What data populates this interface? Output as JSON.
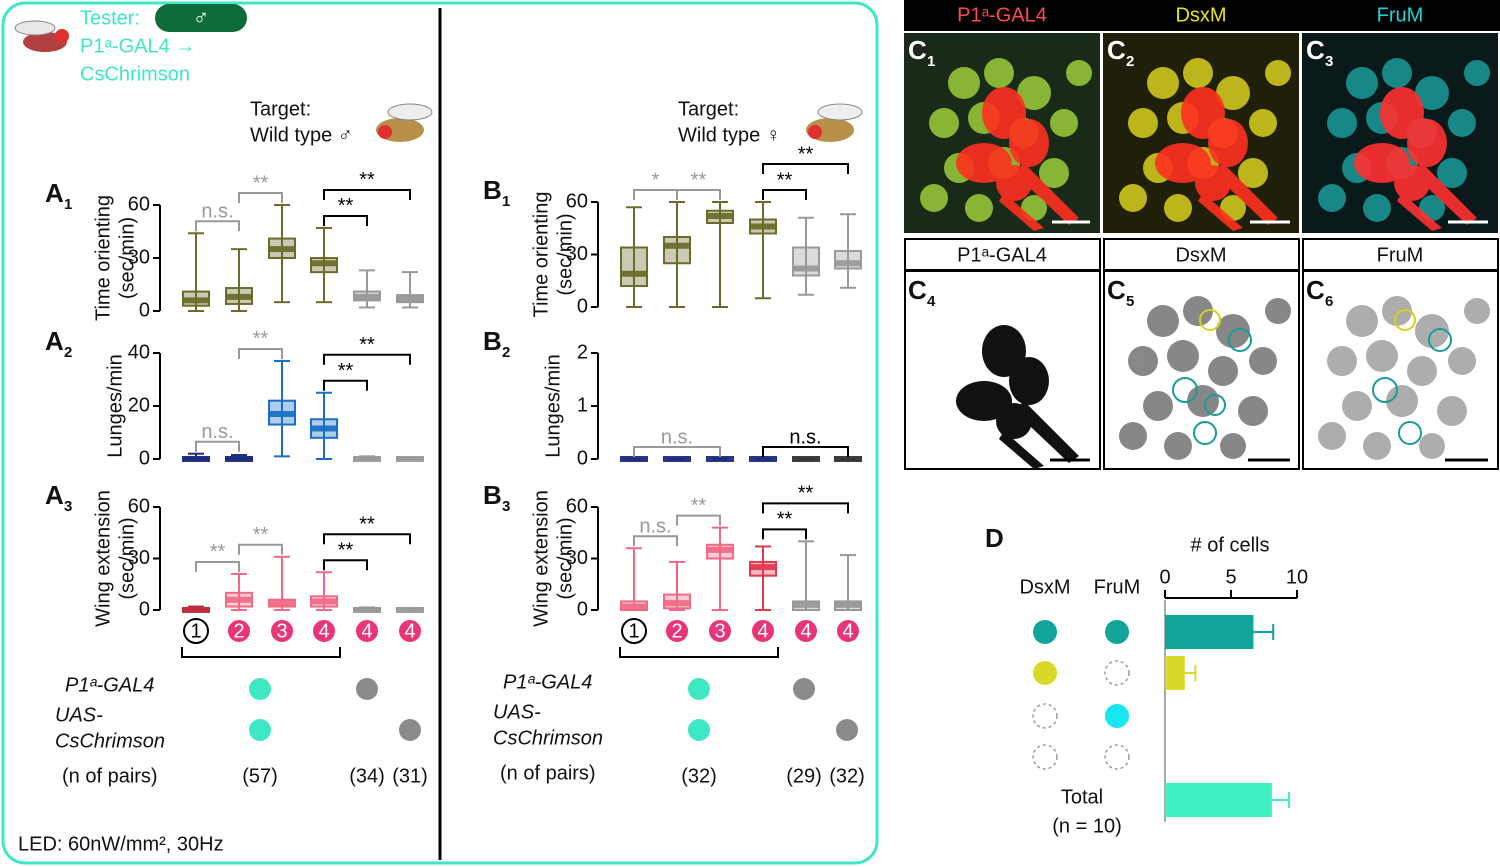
{
  "tester": {
    "label": "Tester:",
    "sex": "♂",
    "line1": "P1ᵃ-GAL4 →",
    "line2": "CsChrimson"
  },
  "targets": [
    {
      "label": "Target:",
      "genotype": "Wild type ♂"
    },
    {
      "label": "Target:",
      "genotype": "Wild type ♀"
    }
  ],
  "box_panels": [
    {
      "type": "box",
      "letter": "A",
      "sub": "1",
      "ylabel": [
        "Time orienting",
        "(sec/min)"
      ],
      "ylim": [
        0,
        60
      ],
      "yticks": [
        0,
        30,
        60
      ],
      "colors": [
        "#6b6b2a",
        "#6b6b2a",
        "#6b6b2a",
        "#6b6b2a",
        "#999999",
        "#999999"
      ],
      "boxes": [
        {
          "min": 0,
          "q1": 3,
          "median": 6,
          "q3": 11,
          "max": 44
        },
        {
          "min": 0,
          "q1": 4,
          "median": 8,
          "q3": 13,
          "max": 35
        },
        {
          "min": 5,
          "q1": 30,
          "median": 35,
          "q3": 41,
          "max": 60
        },
        {
          "min": 5,
          "q1": 22,
          "median": 27,
          "q3": 30,
          "max": 47
        },
        {
          "min": 2,
          "q1": 6,
          "median": 8,
          "q3": 11,
          "max": 23
        },
        {
          "min": 2,
          "q1": 5,
          "median": 7,
          "q3": 9,
          "max": 22
        }
      ],
      "comparisons": [
        {
          "from": 0,
          "to": 1,
          "label": "n.s.",
          "color": "#999999"
        },
        {
          "from": 1,
          "to": 2,
          "label": "**",
          "color": "#999999"
        },
        {
          "from": 3,
          "to": 4,
          "label": "**",
          "color": "#000000"
        },
        {
          "from": 3,
          "to": 5,
          "label": "**",
          "color": "#000000"
        }
      ]
    },
    {
      "type": "box",
      "letter": "A",
      "sub": "2",
      "ylabel": [
        "Lunges/min"
      ],
      "ylim": [
        0,
        40
      ],
      "yticks": [
        0,
        20,
        40
      ],
      "colors": [
        "#1f2a7a",
        "#1f2a7a",
        "#1a6fc4",
        "#1a6fc4",
        "#999999",
        "#999999"
      ],
      "boxes": [
        {
          "min": 0,
          "q1": 0,
          "median": 0,
          "q3": 0.5,
          "max": 2
        },
        {
          "min": 0,
          "q1": 0,
          "median": 0,
          "q3": 0.5,
          "max": 1.5
        },
        {
          "min": 1,
          "q1": 13,
          "median": 17,
          "q3": 22,
          "max": 37
        },
        {
          "min": 0,
          "q1": 8,
          "median": 11.5,
          "q3": 15,
          "max": 25
        },
        {
          "min": 0,
          "q1": 0,
          "median": 0,
          "q3": 0.5,
          "max": 1
        },
        {
          "min": 0,
          "q1": 0,
          "median": 0,
          "q3": 0.2,
          "max": 0.5
        }
      ],
      "comparisons": [
        {
          "from": 0,
          "to": 1,
          "label": "n.s.",
          "color": "#999999"
        },
        {
          "from": 1,
          "to": 2,
          "label": "**",
          "color": "#999999"
        },
        {
          "from": 3,
          "to": 4,
          "label": "**",
          "color": "#000000"
        },
        {
          "from": 3,
          "to": 5,
          "label": "**",
          "color": "#000000"
        }
      ]
    },
    {
      "type": "box",
      "letter": "A",
      "sub": "3",
      "ylabel": [
        "Wing extension",
        "(sec/min)"
      ],
      "ylim": [
        0,
        60
      ],
      "yticks": [
        0,
        30,
        60
      ],
      "colors": [
        "#c0283c",
        "#f06a86",
        "#f06a86",
        "#f06a86",
        "#999999",
        "#999999"
      ],
      "boxes": [
        {
          "min": 0,
          "q1": 0,
          "median": 0,
          "q3": 0.5,
          "max": 2
        },
        {
          "min": 0,
          "q1": 2,
          "median": 6,
          "q3": 10,
          "max": 21
        },
        {
          "min": 0,
          "q1": 2,
          "median": 4,
          "q3": 6,
          "max": 31
        },
        {
          "min": 0,
          "q1": 2,
          "median": 5,
          "q3": 8,
          "max": 22
        },
        {
          "min": 0,
          "q1": 0,
          "median": 0,
          "q3": 1,
          "max": 1.5
        },
        {
          "min": 0,
          "q1": 0,
          "median": 0,
          "q3": 0,
          "max": 1
        }
      ],
      "comparisons": [
        {
          "from": 0,
          "to": 1,
          "label": "**",
          "color": "#999999"
        },
        {
          "from": 1,
          "to": 2,
          "label": "**",
          "color": "#999999"
        },
        {
          "from": 3,
          "to": 4,
          "label": "**",
          "color": "#000000"
        },
        {
          "from": 3,
          "to": 5,
          "label": "**",
          "color": "#000000"
        }
      ]
    },
    {
      "type": "box",
      "letter": "B",
      "sub": "1",
      "ylabel": [
        "Time orienting",
        "(sec/min)"
      ],
      "ylim": [
        0,
        60
      ],
      "yticks": [
        0,
        30,
        60
      ],
      "colors": [
        "#6b6b2a",
        "#6b6b2a",
        "#6b6b2a",
        "#6b6b2a",
        "#999999",
        "#999999"
      ],
      "boxes": [
        {
          "min": 0,
          "q1": 12,
          "median": 19,
          "q3": 34,
          "max": 57
        },
        {
          "min": 0,
          "q1": 25,
          "median": 35,
          "q3": 40,
          "max": 60
        },
        {
          "min": 0,
          "q1": 48,
          "median": 52,
          "q3": 55,
          "max": 60
        },
        {
          "min": 5,
          "q1": 42,
          "median": 46,
          "q3": 50,
          "max": 60
        },
        {
          "min": 7,
          "q1": 18,
          "median": 22,
          "q3": 34,
          "max": 51
        },
        {
          "min": 11,
          "q1": 22,
          "median": 25,
          "q3": 32,
          "max": 53
        }
      ],
      "comparisons": [
        {
          "from": 0,
          "to": 1,
          "label": "*",
          "color": "#999999"
        },
        {
          "from": 1,
          "to": 2,
          "label": "**",
          "color": "#999999"
        },
        {
          "from": 3,
          "to": 4,
          "label": "**",
          "color": "#000000"
        },
        {
          "from": 3,
          "to": 5,
          "label": "**",
          "color": "#000000"
        }
      ]
    },
    {
      "type": "box",
      "letter": "B",
      "sub": "2",
      "ylabel": [
        "Lunges/min"
      ],
      "ylim": [
        0,
        2
      ],
      "yticks": [
        0,
        1,
        2
      ],
      "colors": [
        "#1f2a7a",
        "#1f2a7a",
        "#1f2a7a",
        "#1f2a7a",
        "#333333",
        "#333333"
      ],
      "boxes": [
        {
          "min": 0,
          "q1": 0,
          "median": 0,
          "q3": 0,
          "max": 0
        },
        {
          "min": 0,
          "q1": 0,
          "median": 0,
          "q3": 0,
          "max": 0
        },
        {
          "min": 0,
          "q1": 0,
          "median": 0,
          "q3": 0,
          "max": 0
        },
        {
          "min": 0,
          "q1": 0,
          "median": 0,
          "q3": 0,
          "max": 0
        },
        {
          "min": 0,
          "q1": 0,
          "median": 0,
          "q3": 0,
          "max": 0
        },
        {
          "min": 0,
          "q1": 0,
          "median": 0,
          "q3": 0,
          "max": 0
        }
      ],
      "comparisons": [
        {
          "from": 0,
          "to": 2,
          "label": "n.s.",
          "color": "#999999"
        },
        {
          "from": 3,
          "to": 5,
          "label": "n.s.",
          "color": "#000000"
        }
      ]
    },
    {
      "type": "box",
      "letter": "B",
      "sub": "3",
      "ylabel": [
        "Wing extension",
        "(sec/min)"
      ],
      "ylim": [
        0,
        60
      ],
      "yticks": [
        0,
        30,
        60
      ],
      "colors": [
        "#f06a86",
        "#f06a86",
        "#f06a86",
        "#e0384c",
        "#999999",
        "#999999"
      ],
      "boxes": [
        {
          "min": 0,
          "q1": 0,
          "median": 2,
          "q3": 5,
          "max": 36
        },
        {
          "min": 0,
          "q1": 1,
          "median": 4,
          "q3": 9,
          "max": 28
        },
        {
          "min": 0,
          "q1": 30,
          "median": 35,
          "q3": 38,
          "max": 48
        },
        {
          "min": 0,
          "q1": 20,
          "median": 25,
          "q3": 28,
          "max": 37
        },
        {
          "min": 0,
          "q1": 0,
          "median": 3,
          "q3": 5,
          "max": 40
        },
        {
          "min": 0,
          "q1": 0,
          "median": 3,
          "q3": 5,
          "max": 32
        }
      ],
      "comparisons": [
        {
          "from": 0,
          "to": 1,
          "label": "n.s.",
          "color": "#999999"
        },
        {
          "from": 1,
          "to": 2,
          "label": "**",
          "color": "#999999"
        },
        {
          "from": 3,
          "to": 4,
          "label": "**",
          "color": "#000000"
        },
        {
          "from": 3,
          "to": 5,
          "label": "**",
          "color": "#000000"
        }
      ]
    }
  ],
  "conditions": [
    "1",
    "2",
    "3",
    "4",
    "4",
    "4"
  ],
  "genotype_tables": [
    {
      "p1": "P1ᵃ-GAL4",
      "uas": [
        "UAS-",
        "CsChrimson"
      ],
      "n_label": "(n of pairs)",
      "n": [
        "(57)",
        "(34)",
        "(31)"
      ]
    },
    {
      "p1": "P1ᵃ-GAL4",
      "uas": [
        "UAS-",
        "CsChrimson"
      ],
      "n_label": "(n of pairs)",
      "n": [
        "(32)",
        "(29)",
        "(32)"
      ]
    }
  ],
  "led": "LED: 60nW/mm², 30Hz",
  "images": {
    "headers": [
      {
        "text": "P1ᵃ-GAL4",
        "color": "#ff4b4b"
      },
      {
        "text": "DsxM",
        "color": "#e6e21e"
      },
      {
        "text": "FruM",
        "color": "#1fd2d6"
      }
    ],
    "panels": [
      {
        "letter": "C",
        "sub": "1"
      },
      {
        "letter": "C",
        "sub": "2"
      },
      {
        "letter": "C",
        "sub": "3"
      },
      {
        "letter": "C",
        "sub": "4"
      },
      {
        "letter": "C",
        "sub": "5"
      },
      {
        "letter": "C",
        "sub": "6"
      }
    ],
    "column_labels": [
      "P1ᵃ-GAL4",
      "DsxM",
      "FruM"
    ]
  },
  "panel_d": {
    "type": "bar",
    "letter": "D",
    "title": "# of cells",
    "column_headers": [
      "DsxM",
      "FruM"
    ],
    "row_markers": [
      [
        "#12a39a",
        "#12a39a"
      ],
      [
        "#d9d92a",
        null
      ],
      [
        null,
        "#18e6f0"
      ],
      [
        null,
        null
      ]
    ],
    "total_label": "Total",
    "n_label": "(n = 10)",
    "values": [
      6.7,
      1.5,
      0,
      0,
      8.1
    ],
    "errors": [
      1.5,
      0.8,
      0,
      0,
      1.3
    ],
    "colors": [
      "#12a39a",
      "#d9d92a",
      "#18e6f0",
      "#999999",
      "#3ff0c0"
    ],
    "xlim": [
      0,
      10
    ],
    "xticks": [
      0,
      5,
      10
    ]
  }
}
